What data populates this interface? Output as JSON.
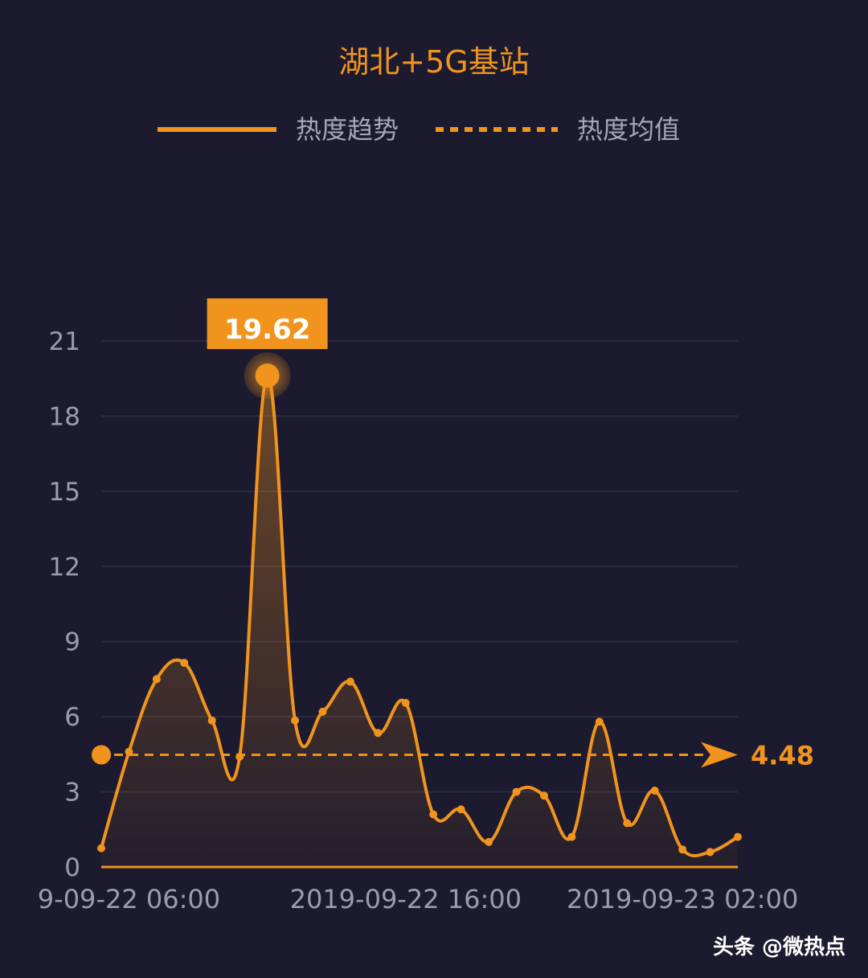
{
  "colors": {
    "background": "#1c1a2e",
    "accent": "#f0941e",
    "grid": "#2d2b42",
    "tick_text": "#9b9cb0",
    "legend_text": "#a5a6b8",
    "label_text": "#ffffff",
    "watermark": "#ffffff"
  },
  "watermark": "头条 @微热点",
  "chart_data": {
    "type": "line",
    "title": "湖北+5G基站",
    "legend": {
      "position": "top",
      "items": [
        {
          "label": "热度趋势",
          "style": "solid"
        },
        {
          "label": "热度均值",
          "style": "dashed"
        }
      ]
    },
    "x_tick_labels": [
      {
        "text": "9-09-22 06:00",
        "index": 1
      },
      {
        "text": "2019-09-22 16:00",
        "index": 11
      },
      {
        "text": "2019-09-23 02:00",
        "index": 21
      }
    ],
    "y_ticks": [
      0,
      3,
      6,
      9,
      12,
      15,
      18,
      21
    ],
    "ylim": [
      0,
      21
    ],
    "grid": true,
    "series": [
      {
        "values": [
          0.75,
          4.6,
          7.5,
          8.15,
          5.85,
          4.4,
          19.62,
          5.85,
          6.2,
          7.4,
          5.35,
          6.55,
          2.1,
          2.3,
          1.0,
          3.0,
          2.85,
          1.2,
          5.8,
          1.75,
          3.05,
          0.7,
          0.6,
          1.2
        ]
      }
    ],
    "average": {
      "value": 4.48,
      "label": "4.48"
    },
    "peak": {
      "index": 6,
      "value": 19.62,
      "label": "19.62"
    }
  }
}
